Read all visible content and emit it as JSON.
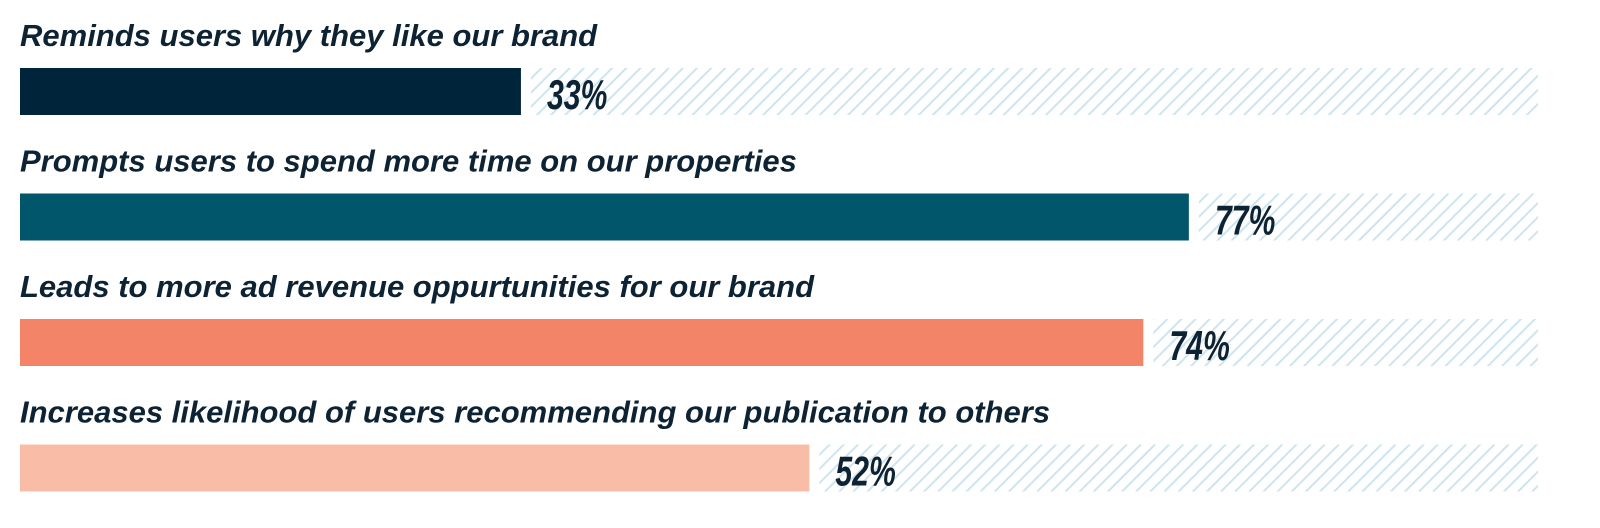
{
  "chart_data": {
    "type": "bar",
    "orientation": "horizontal",
    "categories": [
      "Reminds users why they like our brand",
      "Prompts users to spend more time on our properties",
      "Leads to more ad revenue oppurtunities for our brand",
      "Increases likelihood of users recommending our publication to others"
    ],
    "values": [
      33,
      77,
      74,
      52
    ],
    "value_labels": [
      "33%",
      "77%",
      "74%",
      "52%"
    ],
    "colors": [
      "#00253a",
      "#02566b",
      "#f48468",
      "#f9bda7"
    ],
    "xlim": [
      0,
      100
    ]
  }
}
